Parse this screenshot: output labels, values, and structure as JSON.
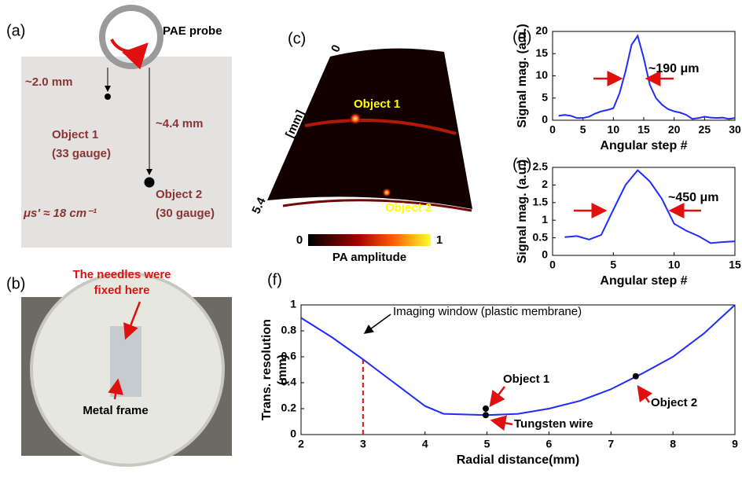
{
  "panels": {
    "a": {
      "label": "(a)",
      "probe": "PAE probe",
      "depth1": "~2.0 mm",
      "object1": "Object 1",
      "gauge1": "(33 gauge)",
      "depth2": "~4.4 mm",
      "object2": "Object 2",
      "gauge2": "(30 gauge)",
      "scattering": "μs′ ≈ 18 cm⁻¹"
    },
    "b": {
      "label": "(b)",
      "note_line1": "The needles were",
      "note_line2": "fixed here",
      "frame": "Metal frame"
    },
    "c": {
      "label": "(c)",
      "depth_start": "0",
      "depth_unit": "[mm]",
      "depth_end": "5.4",
      "object1": "Object 1",
      "object2": "Object 2",
      "colorbar_min": "0",
      "colorbar_max": "1",
      "colorbar_label": "PA amplitude"
    },
    "d": {
      "label": "(d)"
    },
    "e": {
      "label": "(e)"
    },
    "f": {
      "label": "(f)"
    }
  },
  "chart_data": [
    {
      "type": "line",
      "x_label": "Angular step #",
      "y_label": [
        "Signal mag. (a.u.)"
      ],
      "x": [
        1,
        2,
        3,
        4,
        5,
        6,
        7,
        8,
        9,
        10,
        11,
        12,
        13,
        14,
        15,
        16,
        17,
        18,
        19,
        20,
        21,
        22,
        23,
        24,
        25,
        26,
        27,
        28,
        29,
        30
      ],
      "series": [
        {
          "color": "#1f2bff",
          "values": [
            1,
            1.2,
            1,
            0.5,
            0.5,
            0.8,
            1.5,
            2,
            2.3,
            2.7,
            6,
            11,
            17,
            19,
            14,
            8,
            5,
            3.5,
            2.5,
            2,
            1.7,
            1.2,
            0.3,
            0.5,
            0.8,
            0.6,
            0.5,
            0.6,
            0.3,
            0.5
          ]
        }
      ],
      "xlim": [
        0,
        30
      ],
      "xticks": [
        0,
        5,
        10,
        15,
        20,
        25,
        30
      ],
      "ylim": [
        0,
        20
      ],
      "yticks": [
        0,
        5,
        10,
        15,
        20
      ],
      "annotations": [
        "~190 μm"
      ]
    },
    {
      "type": "line",
      "x_label": "Angular step #",
      "y_label": [
        "Signal mag. (a.u.)"
      ],
      "x": [
        1,
        2,
        3,
        4,
        5,
        6,
        7,
        8,
        9,
        10,
        11,
        12,
        13,
        14,
        15
      ],
      "series": [
        {
          "color": "#1f2bff",
          "values": [
            0.52,
            0.55,
            0.45,
            0.58,
            1.3,
            2.0,
            2.42,
            2.1,
            1.6,
            0.9,
            0.7,
            0.55,
            0.35,
            0.38,
            0.4
          ]
        }
      ],
      "xlim": [
        0,
        15
      ],
      "xticks": [
        0,
        5,
        10,
        15
      ],
      "ylim": [
        0,
        2.5
      ],
      "yticks": [
        0,
        0.5,
        1,
        1.5,
        2,
        2.5
      ],
      "annotations": [
        "~450 μm"
      ]
    },
    {
      "type": "line",
      "x_label": "Radial distance(mm)",
      "y_label": [
        "Trans. resolution",
        "(mm)"
      ],
      "x": [
        2,
        2.5,
        3,
        3.5,
        4,
        4.3,
        5,
        5.5,
        6,
        6.5,
        7,
        7.5,
        8,
        8.5,
        9
      ],
      "series": [
        {
          "color": "#1f2bff",
          "values": [
            0.9,
            0.75,
            0.58,
            0.4,
            0.22,
            0.16,
            0.15,
            0.16,
            0.2,
            0.26,
            0.35,
            0.47,
            0.6,
            0.78,
            1.0
          ]
        }
      ],
      "xlim": [
        2,
        9
      ],
      "xticks": [
        2,
        3,
        4,
        5,
        6,
        7,
        8,
        9
      ],
      "ylim": [
        0,
        1
      ],
      "yticks": [
        0,
        0.2,
        0.4,
        0.6,
        0.8,
        1
      ],
      "points": [
        {
          "label": "Object 1",
          "x": 4.98,
          "y": 0.2
        },
        {
          "label": "Tungsten wire",
          "x": 4.98,
          "y": 0.15
        },
        {
          "label": "Object 2",
          "x": 7.4,
          "y": 0.45
        }
      ],
      "window_line": {
        "x": 3,
        "y": 0.58,
        "color": "#e01010"
      },
      "annotations": [
        "Imaging window (plastic membrane)"
      ]
    }
  ]
}
